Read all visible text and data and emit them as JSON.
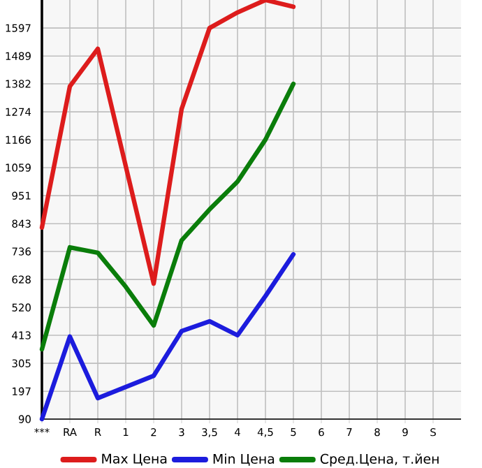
{
  "chart_data": {
    "type": "line",
    "categories": [
      "***",
      "RA",
      "R",
      "1",
      "2",
      "3",
      "3,5",
      "4",
      "4,5",
      "5",
      "6",
      "7",
      "8",
      "9",
      "S"
    ],
    "series": [
      {
        "name": "Max Цена",
        "color": "#dd1c1c",
        "values": [
          828,
          1372,
          1517,
          1065,
          612,
          1285,
          1597,
          1657,
          1705,
          1679,
          null,
          null,
          null,
          null,
          null
        ]
      },
      {
        "name": "Min Цена",
        "color": "#1c1cdd",
        "values": [
          90,
          408,
          171,
          214,
          257,
          429,
          467,
          413,
          564,
          725,
          null,
          null,
          null,
          null,
          null
        ]
      },
      {
        "name": "Сред.Цена, т.йен",
        "color": "#0a7d0a",
        "values": [
          359,
          752,
          731,
          600,
          451,
          779,
          898,
          1005,
          1167,
          1382,
          null,
          null,
          null,
          null,
          null
        ]
      }
    ],
    "ylim": [
      90,
      1705
    ],
    "yticks": [
      90,
      197,
      305,
      413,
      520,
      628,
      736,
      843,
      951,
      1059,
      1166,
      1274,
      1382,
      1489,
      1597
    ],
    "grid": true,
    "legend": "bottom",
    "marker": "none",
    "line_style": "solid"
  }
}
